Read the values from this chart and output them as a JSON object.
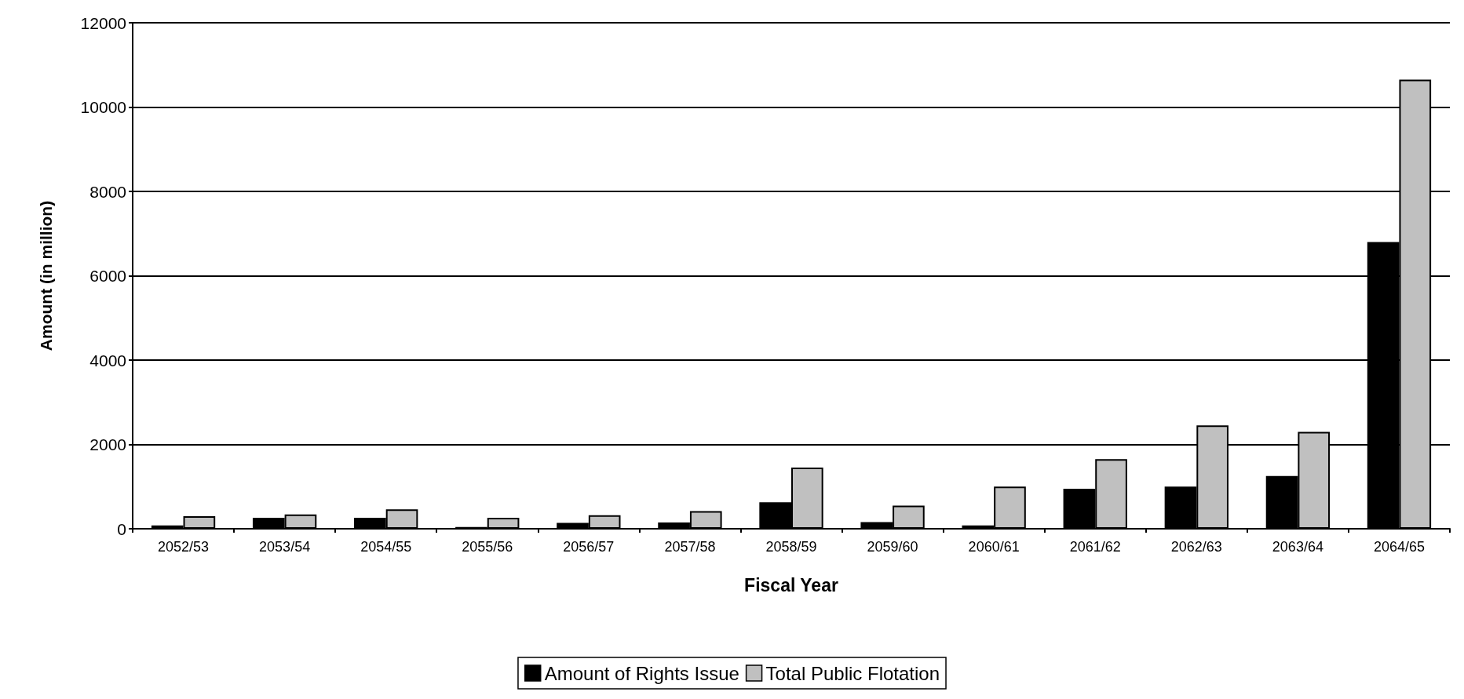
{
  "chart_data": {
    "type": "bar",
    "xlabel": "Fiscal Year",
    "ylabel": "Amount (in million)",
    "categories": [
      "2052/53",
      "2053/54",
      "2054/55",
      "2055/56",
      "2056/57",
      "2057/58",
      "2058/59",
      "2059/60",
      "2060/61",
      "2061/62",
      "2062/63",
      "2063/64",
      "2064/65"
    ],
    "series": [
      {
        "name": "Amount of Rights Issue",
        "color": "#000000",
        "values": [
          80,
          260,
          260,
          40,
          140,
          150,
          630,
          160,
          80,
          950,
          1000,
          1250,
          6800
        ]
      },
      {
        "name": "Total Public Flotation",
        "color": "#c0c0c0",
        "values": [
          300,
          340,
          460,
          260,
          320,
          420,
          1450,
          550,
          1000,
          1650,
          2450,
          2300,
          10650
        ]
      }
    ],
    "ylim": [
      0,
      12000
    ],
    "yticks": [
      0,
      2000,
      4000,
      6000,
      8000,
      10000,
      12000
    ],
    "grid": "y",
    "legend": "bottom"
  }
}
